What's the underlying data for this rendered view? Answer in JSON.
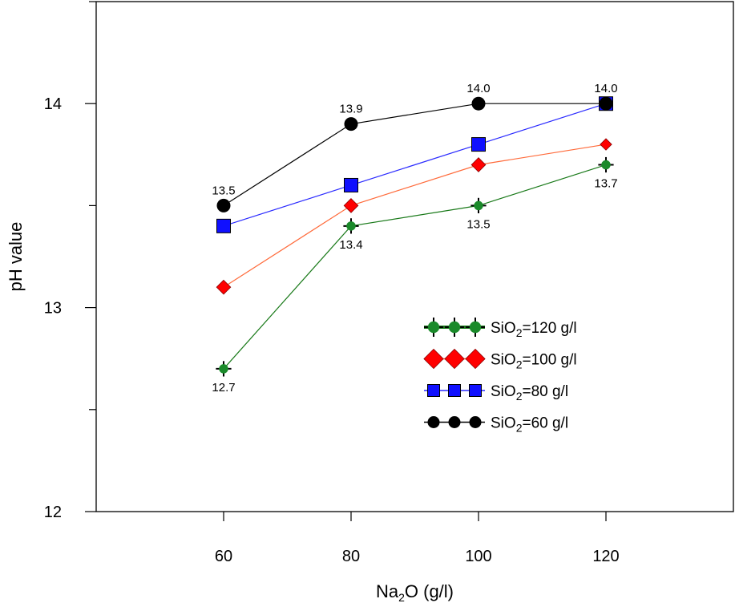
{
  "chart_data": {
    "type": "line",
    "title": "",
    "xlabel": {
      "pre": "Na",
      "sub": "2",
      "post": "O (g/l)"
    },
    "ylabel": "pH value",
    "x": [
      60,
      80,
      100,
      120
    ],
    "xlim": [
      40,
      140
    ],
    "ylim": [
      12,
      14.5
    ],
    "xticks": [
      "60",
      "80",
      "100",
      "120"
    ],
    "yticks": [
      "12",
      "13",
      "14"
    ],
    "legend_position": "center-right",
    "series": [
      {
        "name": "SiO2=120 g/l",
        "legend": {
          "pre": "SiO",
          "sub": "2",
          "post": "=120 g/l"
        },
        "values": [
          12.7,
          13.4,
          13.5,
          13.7
        ],
        "labels": [
          "12.7",
          "13.4",
          "13.5",
          "13.7"
        ],
        "label_side": "below",
        "marker": "circle-cross",
        "color": "#1a8a2a",
        "line_color": "#1a7a1a"
      },
      {
        "name": "SiO2=100 g/l",
        "legend": {
          "pre": "SiO",
          "sub": "2",
          "post": "=100 g/l"
        },
        "values": [
          13.1,
          13.5,
          13.7,
          13.8
        ],
        "labels": [],
        "marker": "diamond",
        "color": "#ff0000",
        "line_color": "#ff6a3a"
      },
      {
        "name": "SiO2=80 g/l",
        "legend": {
          "pre": "SiO",
          "sub": "2",
          "post": "=80 g/l"
        },
        "values": [
          13.4,
          13.6,
          13.8,
          14.0
        ],
        "labels": [],
        "marker": "square",
        "color": "#1010ff",
        "line_color": "#2a2aff"
      },
      {
        "name": "SiO2=60 g/l",
        "legend": {
          "pre": "SiO",
          "sub": "2",
          "post": "=60 g/l"
        },
        "values": [
          13.5,
          13.9,
          14.0,
          14.0
        ],
        "labels": [
          "13.5",
          "13.9",
          "14.0",
          "14.0"
        ],
        "label_side": "above",
        "marker": "circle",
        "color": "#000000",
        "line_color": "#000000"
      }
    ]
  }
}
